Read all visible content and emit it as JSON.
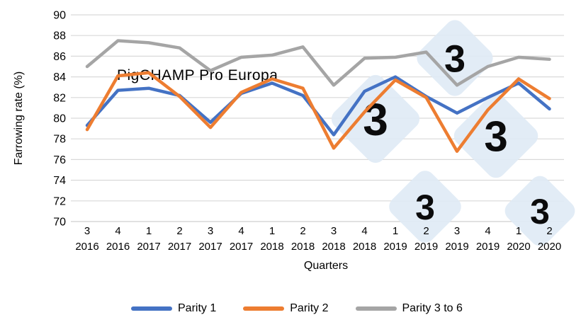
{
  "watermark": {
    "brand_text": "PigCHAMP Pro Europa",
    "logo_digit": "3"
  },
  "chart_data": {
    "type": "line",
    "title": "",
    "xlabel": "Quarters",
    "ylabel": "Farrowing rate (%)",
    "ylim": [
      70,
      90
    ],
    "ytick_step": 2,
    "grid": true,
    "legend_position": "bottom",
    "x_categories": [
      {
        "quarter": "3",
        "year": "2016"
      },
      {
        "quarter": "4",
        "year": "2016"
      },
      {
        "quarter": "1",
        "year": "2017"
      },
      {
        "quarter": "2",
        "year": "2017"
      },
      {
        "quarter": "3",
        "year": "2017"
      },
      {
        "quarter": "4",
        "year": "2017"
      },
      {
        "quarter": "1",
        "year": "2018"
      },
      {
        "quarter": "2",
        "year": "2018"
      },
      {
        "quarter": "3",
        "year": "2018"
      },
      {
        "quarter": "4",
        "year": "2018"
      },
      {
        "quarter": "1",
        "year": "2019"
      },
      {
        "quarter": "2",
        "year": "2019"
      },
      {
        "quarter": "3",
        "year": "2019"
      },
      {
        "quarter": "4",
        "year": "2019"
      },
      {
        "quarter": "1",
        "year": "2020"
      },
      {
        "quarter": "2",
        "year": "2020"
      }
    ],
    "series": [
      {
        "name": "Parity 1",
        "color": "#4472C4",
        "values": [
          79.3,
          82.7,
          82.9,
          82.2,
          79.6,
          82.4,
          83.4,
          82.2,
          78.4,
          82.6,
          84.0,
          82.1,
          80.5,
          82.0,
          83.4,
          80.9
        ]
      },
      {
        "name": "Parity 2",
        "color": "#ED7D31",
        "values": [
          78.9,
          84.1,
          84.4,
          82.1,
          79.1,
          82.5,
          83.8,
          82.9,
          77.1,
          80.6,
          83.7,
          82.0,
          76.8,
          80.8,
          83.8,
          81.9
        ]
      },
      {
        "name": "Parity 3 to 6",
        "color": "#A5A5A5",
        "values": [
          85.0,
          87.5,
          87.3,
          86.8,
          84.6,
          85.9,
          86.1,
          86.9,
          83.2,
          85.8,
          85.9,
          86.4,
          83.2,
          85.0,
          85.9,
          85.7
        ]
      }
    ],
    "colors": {
      "gridline": "#D9D9D9",
      "baseline": "#CFCFCF",
      "watermark_text": "#BDD6EB",
      "watermark_diamond": "#DFEAF5"
    }
  }
}
